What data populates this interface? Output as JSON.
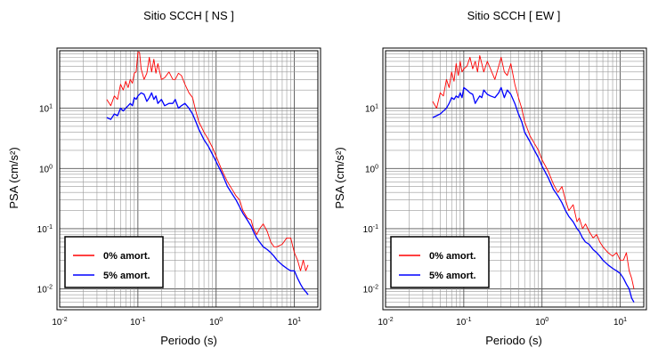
{
  "chart_data": [
    {
      "type": "line",
      "title": "Sitio SCCH [ NS ]",
      "xlabel": "Periodo (s)",
      "ylabel": "PSA (cm/s²)",
      "x_scale": "log",
      "y_scale": "log",
      "xlim": [
        0.01,
        20
      ],
      "ylim": [
        0.005,
        90
      ],
      "grid": true,
      "legend_position": "bottom-left",
      "x_ticks": [
        {
          "base": "10",
          "exp": "-2"
        },
        {
          "base": "10",
          "exp": "-1"
        },
        {
          "base": "10",
          "exp": "0"
        },
        {
          "base": "10",
          "exp": "1"
        }
      ],
      "y_ticks": [
        {
          "base": "10",
          "exp": "-2"
        },
        {
          "base": "10",
          "exp": "-1"
        },
        {
          "base": "10",
          "exp": "0"
        },
        {
          "base": "10",
          "exp": "1"
        }
      ],
      "series": [
        {
          "name": "0% amort.",
          "color": "#ff0000",
          "x": [
            0.04,
            0.045,
            0.05,
            0.055,
            0.06,
            0.065,
            0.07,
            0.075,
            0.08,
            0.085,
            0.09,
            0.095,
            0.1,
            0.105,
            0.11,
            0.12,
            0.13,
            0.14,
            0.15,
            0.16,
            0.17,
            0.18,
            0.2,
            0.22,
            0.25,
            0.28,
            0.3,
            0.33,
            0.36,
            0.4,
            0.45,
            0.5,
            0.55,
            0.6,
            0.7,
            0.8,
            0.9,
            1.0,
            1.2,
            1.4,
            1.6,
            1.8,
            2.0,
            2.2,
            2.5,
            2.8,
            3.0,
            3.3,
            3.6,
            4.0,
            4.5,
            5.0,
            5.5,
            6.0,
            7.0,
            8.0,
            9.0,
            10.0,
            11.0,
            12.0,
            13.0,
            14.0,
            15.0
          ],
          "y": [
            14,
            11,
            16,
            14,
            25,
            20,
            28,
            22,
            30,
            26,
            38,
            40,
            85,
            85,
            45,
            30,
            38,
            70,
            40,
            65,
            38,
            55,
            30,
            32,
            40,
            30,
            30,
            38,
            35,
            25,
            18,
            15,
            9,
            6,
            4,
            3,
            2.2,
            1.6,
            0.9,
            0.6,
            0.45,
            0.35,
            0.3,
            0.2,
            0.15,
            0.14,
            0.1,
            0.08,
            0.1,
            0.12,
            0.09,
            0.06,
            0.05,
            0.05,
            0.055,
            0.07,
            0.07,
            0.04,
            0.03,
            0.02,
            0.03,
            0.02,
            0.025
          ]
        },
        {
          "name": "5% amort.",
          "color": "#0000ff",
          "x": [
            0.04,
            0.045,
            0.05,
            0.055,
            0.06,
            0.065,
            0.07,
            0.075,
            0.08,
            0.085,
            0.09,
            0.095,
            0.1,
            0.11,
            0.12,
            0.13,
            0.14,
            0.15,
            0.16,
            0.17,
            0.18,
            0.2,
            0.22,
            0.25,
            0.28,
            0.3,
            0.33,
            0.36,
            0.4,
            0.45,
            0.5,
            0.55,
            0.6,
            0.7,
            0.8,
            0.9,
            1.0,
            1.2,
            1.4,
            1.6,
            1.8,
            2.0,
            2.2,
            2.5,
            2.8,
            3.0,
            3.3,
            3.6,
            4.0,
            4.5,
            5.0,
            5.5,
            6.0,
            7.0,
            8.0,
            9.0,
            10.0,
            11.0,
            12.0,
            13.0,
            14.0,
            15.0
          ],
          "y": [
            7,
            6.5,
            8,
            7.5,
            10,
            9,
            10,
            11,
            12,
            11,
            15,
            14,
            16,
            18,
            17,
            13,
            15,
            18,
            14,
            16,
            12,
            14,
            11,
            12,
            12,
            14,
            10,
            11,
            12,
            10,
            8,
            6,
            4.5,
            3,
            2.3,
            1.7,
            1.3,
            0.8,
            0.5,
            0.38,
            0.3,
            0.23,
            0.18,
            0.14,
            0.11,
            0.09,
            0.07,
            0.06,
            0.05,
            0.045,
            0.04,
            0.035,
            0.03,
            0.025,
            0.022,
            0.02,
            0.02,
            0.015,
            0.012,
            0.01,
            0.009,
            0.008
          ]
        }
      ]
    },
    {
      "type": "line",
      "title": "Sitio SCCH [ EW ]",
      "xlabel": "Periodo (s)",
      "ylabel": "PSA (cm/s²)",
      "x_scale": "log",
      "y_scale": "log",
      "xlim": [
        0.01,
        20
      ],
      "ylim": [
        0.005,
        90
      ],
      "grid": true,
      "legend_position": "bottom-left",
      "x_ticks": [
        {
          "base": "10",
          "exp": "-2"
        },
        {
          "base": "10",
          "exp": "-1"
        },
        {
          "base": "10",
          "exp": "0"
        },
        {
          "base": "10",
          "exp": "1"
        }
      ],
      "y_ticks": [
        {
          "base": "10",
          "exp": "-2"
        },
        {
          "base": "10",
          "exp": "-1"
        },
        {
          "base": "10",
          "exp": "0"
        },
        {
          "base": "10",
          "exp": "1"
        }
      ],
      "series": [
        {
          "name": "0% amort.",
          "color": "#ff0000",
          "x": [
            0.04,
            0.045,
            0.05,
            0.055,
            0.06,
            0.065,
            0.07,
            0.075,
            0.08,
            0.085,
            0.09,
            0.095,
            0.1,
            0.11,
            0.12,
            0.13,
            0.14,
            0.15,
            0.16,
            0.17,
            0.18,
            0.2,
            0.22,
            0.25,
            0.28,
            0.3,
            0.33,
            0.36,
            0.4,
            0.45,
            0.5,
            0.55,
            0.6,
            0.7,
            0.8,
            0.9,
            1.0,
            1.2,
            1.4,
            1.6,
            1.8,
            2.0,
            2.2,
            2.5,
            2.8,
            3.0,
            3.3,
            3.6,
            4.0,
            4.5,
            5.0,
            5.5,
            6.0,
            7.0,
            8.0,
            9.0,
            10.0,
            11.0,
            12.0,
            13.0,
            14.0,
            15.0
          ],
          "y": [
            13,
            10,
            18,
            16,
            30,
            22,
            40,
            28,
            55,
            35,
            60,
            40,
            45,
            50,
            70,
            45,
            60,
            40,
            75,
            55,
            40,
            60,
            45,
            30,
            50,
            70,
            40,
            35,
            55,
            25,
            15,
            10,
            6,
            3.5,
            2.6,
            2.0,
            1.4,
            0.9,
            0.55,
            0.4,
            0.5,
            0.3,
            0.2,
            0.25,
            0.13,
            0.15,
            0.1,
            0.12,
            0.09,
            0.07,
            0.08,
            0.06,
            0.05,
            0.04,
            0.035,
            0.04,
            0.03,
            0.03,
            0.04,
            0.02,
            0.015,
            0.01
          ]
        },
        {
          "name": "5% amort.",
          "color": "#0000ff",
          "x": [
            0.04,
            0.045,
            0.05,
            0.055,
            0.06,
            0.065,
            0.07,
            0.075,
            0.08,
            0.085,
            0.09,
            0.095,
            0.1,
            0.11,
            0.12,
            0.13,
            0.14,
            0.15,
            0.16,
            0.17,
            0.18,
            0.2,
            0.22,
            0.25,
            0.28,
            0.3,
            0.33,
            0.36,
            0.4,
            0.45,
            0.5,
            0.55,
            0.6,
            0.7,
            0.8,
            0.9,
            1.0,
            1.2,
            1.4,
            1.6,
            1.8,
            2.0,
            2.2,
            2.5,
            2.8,
            3.0,
            3.3,
            3.6,
            4.0,
            4.5,
            5.0,
            5.5,
            6.0,
            7.0,
            8.0,
            9.0,
            10.0,
            11.0,
            12.0,
            13.0,
            14.0,
            15.0
          ],
          "y": [
            7,
            7.5,
            8,
            9,
            10,
            12,
            15,
            14,
            16,
            15,
            18,
            15,
            22,
            20,
            18,
            17,
            12,
            14,
            16,
            15,
            20,
            17,
            16,
            15,
            18,
            22,
            15,
            20,
            17,
            12,
            8,
            6,
            4,
            2.8,
            2.0,
            1.5,
            1.1,
            0.7,
            0.45,
            0.35,
            0.27,
            0.2,
            0.16,
            0.13,
            0.1,
            0.09,
            0.07,
            0.06,
            0.055,
            0.045,
            0.04,
            0.035,
            0.03,
            0.025,
            0.022,
            0.02,
            0.018,
            0.015,
            0.012,
            0.01,
            0.007,
            0.006
          ]
        }
      ]
    }
  ]
}
